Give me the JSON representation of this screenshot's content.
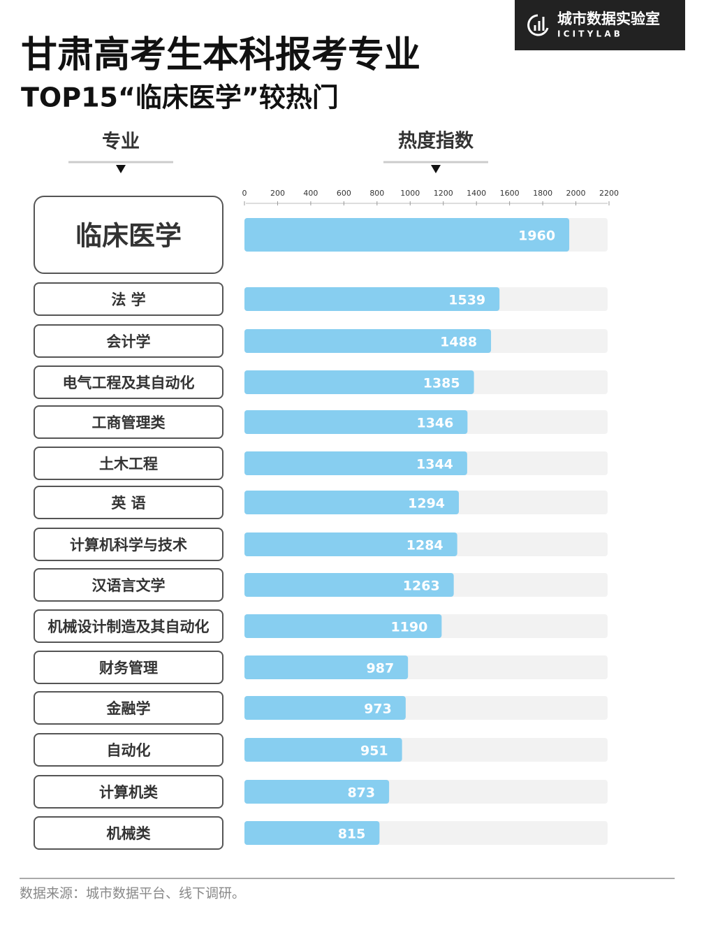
{
  "chart_data": {
    "type": "bar",
    "orientation": "horizontal",
    "title": "甘肃高考生本科报考专业",
    "subtitle": "TOP15“临床医学”较热门",
    "category_header": "专业",
    "value_header": "热度指数",
    "categories": [
      "临床医学",
      "法 学",
      "会计学",
      "电气工程及其自动化",
      "工商管理类",
      "土木工程",
      "英 语",
      "计算机科学与技术",
      "汉语言文学",
      "机械设计制造及其自动化",
      "财务管理",
      "金融学",
      "自动化",
      "计算机类",
      "机械类"
    ],
    "values": [
      1960,
      1539,
      1488,
      1385,
      1346,
      1344,
      1294,
      1284,
      1263,
      1190,
      987,
      973,
      951,
      873,
      815
    ],
    "xlim": [
      0,
      2200
    ],
    "xticks": [
      0,
      200,
      400,
      600,
      800,
      1000,
      1200,
      1400,
      1600,
      1800,
      2000,
      2200
    ],
    "color": "#87cef0",
    "track_color": "#f2f2f2"
  },
  "logo": {
    "name": "城市数据实验室",
    "latin": "I C I T Y L A B"
  },
  "source": "数据来源：城市数据平台、线下调研。"
}
